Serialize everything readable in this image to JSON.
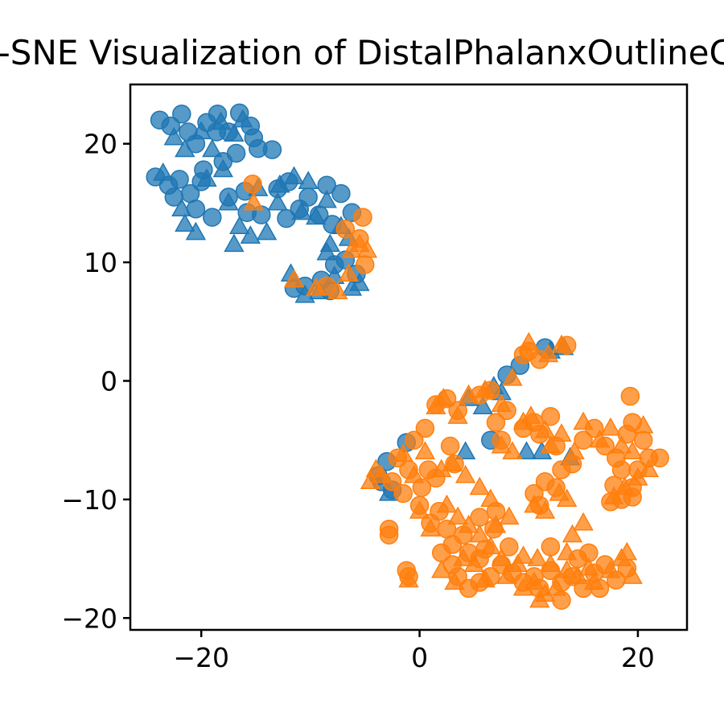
{
  "chart_data": {
    "type": "scatter",
    "title": "t-SNE Visualization of DistalPhalanxOutlineCorrect",
    "xlabel": "",
    "ylabel": "",
    "xlim": [
      -26.5,
      24.5
    ],
    "ylim": [
      -21,
      25
    ],
    "x_ticks": [
      -20,
      0,
      20
    ],
    "y_ticks": [
      -20,
      -10,
      0,
      10,
      20
    ],
    "x_tick_labels": [
      "−20",
      "0",
      "20"
    ],
    "y_tick_labels": [
      "−20",
      "−10",
      "0",
      "10",
      "20"
    ],
    "grid": false,
    "legend": "none",
    "colors": {
      "blue": "#1f77b4",
      "orange": "#ff7f0e"
    },
    "series": [
      {
        "color": "#1f77b4",
        "marker": "circle",
        "points": [
          [
            -23.8,
            22.0
          ],
          [
            -22.8,
            21.5
          ],
          [
            -21.8,
            22.5
          ],
          [
            -21.2,
            21.0
          ],
          [
            -20.5,
            20.0
          ],
          [
            -19.5,
            21.8
          ],
          [
            -18.5,
            22.5
          ],
          [
            -17.5,
            21.0
          ],
          [
            -16.5,
            22.6
          ],
          [
            -15.5,
            21.5
          ],
          [
            -15.2,
            20.5
          ],
          [
            -16.8,
            19.2
          ],
          [
            -18.0,
            18.5
          ],
          [
            -19.8,
            17.8
          ],
          [
            -13.5,
            19.5
          ],
          [
            -24.2,
            17.2
          ],
          [
            -23.0,
            16.5
          ],
          [
            -22.0,
            17.0
          ],
          [
            -21.0,
            15.8
          ],
          [
            -20.0,
            16.8
          ],
          [
            -22.5,
            15.5
          ],
          [
            -19.0,
            13.8
          ],
          [
            -20.5,
            14.5
          ],
          [
            -17.5,
            15.5
          ],
          [
            -15.8,
            14.2
          ],
          [
            -14.5,
            14.0
          ],
          [
            -13.0,
            16.2
          ],
          [
            -12.0,
            16.8
          ],
          [
            -11.0,
            14.5
          ],
          [
            -10.2,
            15.5
          ],
          [
            -9.2,
            14.0
          ],
          [
            -8.5,
            16.5
          ],
          [
            -7.2,
            15.8
          ],
          [
            -6.2,
            14.2
          ],
          [
            -8.0,
            13.2
          ],
          [
            -11.5,
            7.8
          ],
          [
            -10.5,
            8.0
          ],
          [
            -9.0,
            8.5
          ],
          [
            -8.2,
            7.6
          ],
          [
            -7.8,
            9.8
          ],
          [
            -6.8,
            10.2
          ],
          [
            -5.8,
            9.0
          ],
          [
            -16.0,
            16.0
          ],
          [
            -18.6,
            21.0
          ],
          [
            -14.8,
            19.6
          ],
          [
            -12.2,
            13.7
          ],
          [
            -3.0,
            -6.8
          ],
          [
            -3.5,
            -8.5
          ],
          [
            -2.5,
            -9.2
          ],
          [
            -1.2,
            -5.2
          ],
          [
            8.0,
            0.5
          ],
          [
            11.5,
            2.8
          ],
          [
            6.5,
            -5.0
          ],
          [
            -3.8,
            -8.0
          ],
          [
            9.2,
            1.3
          ]
        ]
      },
      {
        "color": "#1f77b4",
        "marker": "triangle",
        "points": [
          [
            -22.5,
            20.5
          ],
          [
            -21.5,
            19.5
          ],
          [
            -20.0,
            21.0
          ],
          [
            -19.0,
            19.5
          ],
          [
            -17.0,
            20.8
          ],
          [
            -16.2,
            22.0
          ],
          [
            -18.0,
            17.8
          ],
          [
            -19.5,
            17.0
          ],
          [
            -23.5,
            17.5
          ],
          [
            -21.8,
            14.5
          ],
          [
            -21.5,
            13.2
          ],
          [
            -20.5,
            12.5
          ],
          [
            -17.5,
            15.0
          ],
          [
            -16.5,
            13.0
          ],
          [
            -17.0,
            11.5
          ],
          [
            -15.5,
            12.2
          ],
          [
            -14.0,
            12.5
          ],
          [
            -14.8,
            16.2
          ],
          [
            -12.8,
            16.5
          ],
          [
            -11.5,
            17.2
          ],
          [
            -10.8,
            14.2
          ],
          [
            -10.2,
            16.8
          ],
          [
            -9.5,
            13.8
          ],
          [
            -8.5,
            15.2
          ],
          [
            -7.2,
            13.0
          ],
          [
            -6.5,
            12.0
          ],
          [
            -8.2,
            11.5
          ],
          [
            -11.8,
            9.0
          ],
          [
            -10.5,
            7.2
          ],
          [
            -9.2,
            7.5
          ],
          [
            -8.5,
            10.8
          ],
          [
            -7.8,
            8.8
          ],
          [
            -6.2,
            7.8
          ],
          [
            -5.5,
            8.2
          ],
          [
            -13.0,
            15.0
          ],
          [
            -18.2,
            21.8
          ],
          [
            4.5,
            -1.5
          ],
          [
            5.8,
            -2.2
          ],
          [
            6.8,
            -0.5
          ],
          [
            7.5,
            -1.0
          ],
          [
            9.8,
            -6.0
          ],
          [
            11.2,
            -6.0
          ],
          [
            12.0,
            2.5
          ],
          [
            13.2,
            2.8
          ],
          [
            13.8,
            -6.5
          ],
          [
            -2.8,
            -9.5
          ],
          [
            4.2,
            -6.0
          ]
        ]
      },
      {
        "color": "#ff7f0e",
        "marker": "circle",
        "points": [
          [
            -15.3,
            16.6
          ],
          [
            -5.2,
            13.8
          ],
          [
            -5.5,
            12.0
          ],
          [
            -5.0,
            9.8
          ],
          [
            -6.8,
            12.8
          ],
          [
            -8.5,
            8.0
          ],
          [
            10.0,
            2.5
          ],
          [
            11.0,
            1.8
          ],
          [
            13.5,
            3.0
          ],
          [
            9.5,
            2.2
          ],
          [
            -0.5,
            -5.0
          ],
          [
            0.5,
            -4.0
          ],
          [
            -2.0,
            -6.5
          ],
          [
            -1.0,
            -7.5
          ],
          [
            -2.5,
            -8.5
          ],
          [
            -1.5,
            -9.5
          ],
          [
            0.0,
            -10.5
          ],
          [
            1.0,
            -12.0
          ],
          [
            2.5,
            -12.5
          ],
          [
            2.0,
            -14.5
          ],
          [
            3.0,
            -15.5
          ],
          [
            4.0,
            -13.0
          ],
          [
            4.5,
            -14.5
          ],
          [
            5.5,
            -15.0
          ],
          [
            3.5,
            -16.5
          ],
          [
            4.5,
            -17.5
          ],
          [
            5.5,
            -17.0
          ],
          [
            6.5,
            -16.5
          ],
          [
            7.5,
            -15.5
          ],
          [
            8.5,
            -16.2
          ],
          [
            9.5,
            -17.0
          ],
          [
            10.5,
            -16.5
          ],
          [
            11.0,
            -17.5
          ],
          [
            12.0,
            -16.0
          ],
          [
            13.0,
            -17.0
          ],
          [
            14.0,
            -16.5
          ],
          [
            14.5,
            -15.0
          ],
          [
            15.0,
            -17.5
          ],
          [
            16.0,
            -16.2
          ],
          [
            17.0,
            -15.5
          ],
          [
            18.0,
            -16.8
          ],
          [
            19.0,
            -15.8
          ],
          [
            13.0,
            -18.5
          ],
          [
            12.0,
            -14.0
          ],
          [
            15.5,
            -14.5
          ],
          [
            16.5,
            -17.5
          ],
          [
            -2.8,
            -12.5
          ],
          [
            -2.8,
            -13.0
          ],
          [
            -1.2,
            -16.0
          ],
          [
            -1.0,
            -16.5
          ],
          [
            1.5,
            -2.0
          ],
          [
            2.5,
            -1.5
          ],
          [
            3.5,
            -2.5
          ],
          [
            5.5,
            -1.2
          ],
          [
            6.5,
            -0.8
          ],
          [
            7.0,
            -3.5
          ],
          [
            8.0,
            -2.5
          ],
          [
            7.5,
            -5.0
          ],
          [
            9.5,
            -4.0
          ],
          [
            10.5,
            -3.5
          ],
          [
            11.0,
            -4.5
          ],
          [
            12.0,
            -3.0
          ],
          [
            12.5,
            -5.5
          ],
          [
            13.0,
            -7.5
          ],
          [
            11.5,
            -8.5
          ],
          [
            10.5,
            -9.5
          ],
          [
            11.0,
            -10.5
          ],
          [
            12.5,
            -9.0
          ],
          [
            14.0,
            -7.0
          ],
          [
            15.0,
            -5.0
          ],
          [
            16.0,
            -4.0
          ],
          [
            17.0,
            -5.5
          ],
          [
            18.0,
            -6.5
          ],
          [
            19.0,
            -4.5
          ],
          [
            19.5,
            -3.5
          ],
          [
            20.5,
            -5.0
          ],
          [
            21.0,
            -6.5
          ],
          [
            22.0,
            -6.5
          ],
          [
            20.0,
            -7.5
          ],
          [
            19.5,
            -9.0
          ],
          [
            18.5,
            -10.0
          ],
          [
            19.5,
            -9.8
          ],
          [
            17.5,
            -10.2
          ],
          [
            19.3,
            -1.3
          ],
          [
            18.5,
            -7.5
          ],
          [
            17.8,
            -8.8
          ],
          [
            0.8,
            -7.5
          ],
          [
            1.5,
            -8.2
          ],
          [
            2.8,
            -5.5
          ],
          [
            3.2,
            -7.0
          ],
          [
            0.2,
            -9.0
          ],
          [
            1.8,
            -11.0
          ],
          [
            5.5,
            -11.5
          ],
          [
            6.8,
            -12.5
          ],
          [
            8.2,
            -14.0
          ],
          [
            6.0,
            -14.2
          ],
          [
            3.0,
            -13.8
          ],
          [
            7.0,
            -11.0
          ]
        ]
      },
      {
        "color": "#ff7f0e",
        "marker": "triangle",
        "points": [
          [
            -15.2,
            15.0
          ],
          [
            -5.5,
            11.5
          ],
          [
            -6.5,
            9.0
          ],
          [
            -11.5,
            8.5
          ],
          [
            -9.5,
            7.8
          ],
          [
            -7.5,
            7.5
          ],
          [
            -4.8,
            11.0
          ],
          [
            -6.2,
            11.0
          ],
          [
            10.0,
            3.2
          ],
          [
            11.8,
            2.2
          ],
          [
            13.0,
            3.0
          ],
          [
            -4.0,
            -7.5
          ],
          [
            -3.5,
            -8.0
          ],
          [
            -4.5,
            -8.5
          ],
          [
            -1.5,
            -6.2
          ],
          [
            0.5,
            -6.0
          ],
          [
            -0.5,
            -8.0
          ],
          [
            1.5,
            -2.2
          ],
          [
            2.2,
            -1.5
          ],
          [
            3.5,
            -3.0
          ],
          [
            4.5,
            -1.2
          ],
          [
            6.0,
            -0.8
          ],
          [
            8.5,
            0.2
          ],
          [
            7.5,
            -2.0
          ],
          [
            9.5,
            -3.5
          ],
          [
            10.2,
            -3.0
          ],
          [
            11.5,
            -4.2
          ],
          [
            12.0,
            -5.5
          ],
          [
            13.0,
            -4.5
          ],
          [
            14.2,
            -6.0
          ],
          [
            15.0,
            -3.5
          ],
          [
            16.5,
            -5.0
          ],
          [
            17.5,
            -4.0
          ],
          [
            18.5,
            -5.5
          ],
          [
            19.5,
            -6.0
          ],
          [
            20.5,
            -3.8
          ],
          [
            21.0,
            -7.5
          ],
          [
            20.0,
            -8.2
          ],
          [
            18.8,
            -9.0
          ],
          [
            17.8,
            -9.8
          ],
          [
            12.8,
            -9.5
          ],
          [
            11.5,
            -11.0
          ],
          [
            13.5,
            -10.0
          ],
          [
            10.5,
            -10.5
          ],
          [
            7.5,
            -5.5
          ],
          [
            8.5,
            -6.0
          ],
          [
            3.0,
            -7.0
          ],
          [
            2.0,
            -7.5
          ],
          [
            2.5,
            -10.5
          ],
          [
            3.5,
            -11.5
          ],
          [
            4.5,
            -12.2
          ],
          [
            5.5,
            -13.0
          ],
          [
            6.5,
            -14.0
          ],
          [
            7.5,
            -15.0
          ],
          [
            9.0,
            -15.5
          ],
          [
            8.0,
            -16.5
          ],
          [
            9.5,
            -17.5
          ],
          [
            10.5,
            -17.0
          ],
          [
            11.5,
            -18.0
          ],
          [
            12.5,
            -17.5
          ],
          [
            13.5,
            -16.0
          ],
          [
            14.5,
            -16.5
          ],
          [
            15.5,
            -15.8
          ],
          [
            16.0,
            -17.0
          ],
          [
            17.5,
            -16.0
          ],
          [
            18.5,
            -15.0
          ],
          [
            19.0,
            -14.5
          ],
          [
            19.5,
            -16.5
          ],
          [
            11.0,
            -18.5
          ],
          [
            12.0,
            -15.5
          ],
          [
            9.5,
            -14.8
          ],
          [
            5.0,
            -15.5
          ],
          [
            6.0,
            -16.8
          ],
          [
            -1.0,
            -16.8
          ],
          [
            2.0,
            -16.0
          ],
          [
            4.0,
            -15.0
          ],
          [
            1.0,
            -12.5
          ],
          [
            0.0,
            -11.0
          ],
          [
            6.5,
            -10.0
          ],
          [
            5.5,
            -9.0
          ],
          [
            4.2,
            -8.0
          ],
          [
            7.0,
            -12.2
          ],
          [
            8.2,
            -11.5
          ],
          [
            15.0,
            -12.0
          ],
          [
            14.0,
            -13.0
          ],
          [
            13.5,
            -14.5
          ],
          [
            3.2,
            -17.0
          ],
          [
            10.8,
            -15.0
          ]
        ]
      }
    ]
  }
}
